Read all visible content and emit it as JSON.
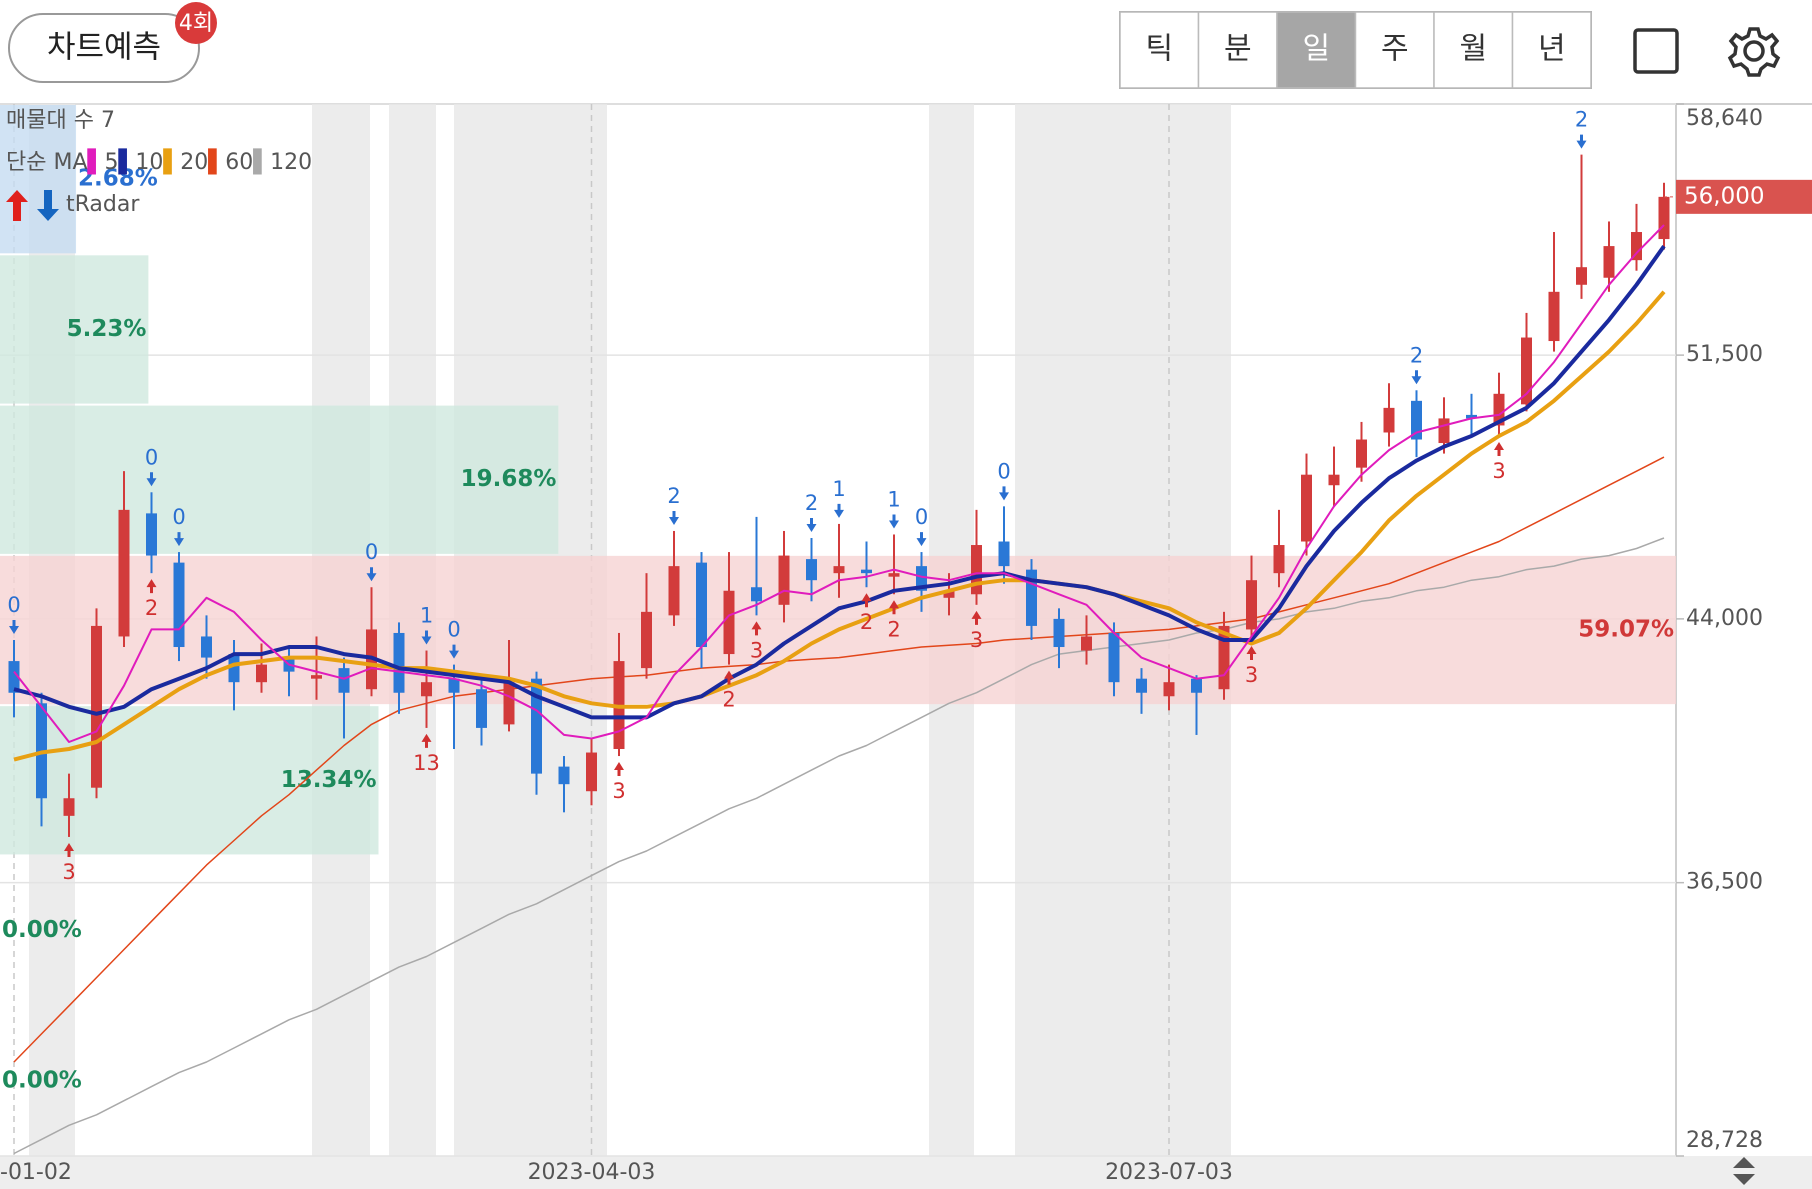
{
  "header": {
    "predict_button": "차트예측",
    "badge": "4회",
    "periods": [
      "틱",
      "분",
      "일",
      "주",
      "월",
      "년"
    ],
    "selected_index": 2
  },
  "chart_data": {
    "type": "candlestick",
    "categories": [
      "-01-02",
      null,
      null,
      null,
      null,
      null,
      null,
      null,
      null,
      null,
      null,
      null,
      null,
      null,
      null,
      null,
      null,
      null,
      null,
      null,
      null,
      "2023-04-03",
      null,
      null,
      null,
      null,
      null,
      null,
      null,
      null,
      null,
      null,
      null,
      null,
      null,
      null,
      null,
      null,
      null,
      null,
      null,
      null,
      "2023-07-03",
      null,
      null,
      null,
      null,
      null,
      null,
      null,
      null,
      null,
      null,
      null,
      null,
      null,
      null,
      null,
      null,
      null,
      null
    ],
    "candles": {
      "up_color": "#d23b3b",
      "down_color": "#2a78d6",
      "open": [
        42800,
        41600,
        38400,
        39200,
        43500,
        47000,
        45600,
        43500,
        43000,
        42200,
        42900,
        42300,
        42600,
        42000,
        43600,
        41800,
        42300,
        42000,
        41000,
        42300,
        39800,
        39100,
        40300,
        42600,
        44100,
        45600,
        43000,
        44900,
        44400,
        45700,
        45300,
        45400,
        45200,
        45500,
        44600,
        44700,
        46200,
        45400,
        44000,
        43100,
        43600,
        42300,
        41800,
        42300,
        42000,
        43700,
        45300,
        46200,
        47800,
        48300,
        49300,
        50200,
        49000,
        49800,
        49500,
        50100,
        51900,
        53500,
        53700,
        54200,
        54800
      ],
      "high": [
        43400,
        41900,
        39600,
        44300,
        48200,
        47600,
        45900,
        44100,
        43400,
        43300,
        43200,
        43500,
        42900,
        44900,
        43900,
        43100,
        42700,
        42400,
        43400,
        42500,
        40100,
        40600,
        43600,
        45300,
        46500,
        45900,
        45900,
        46900,
        46500,
        46300,
        46700,
        46200,
        46400,
        45900,
        45300,
        47100,
        47200,
        45700,
        44300,
        44100,
        43900,
        42600,
        42700,
        42400,
        44200,
        45800,
        47100,
        48700,
        48900,
        49600,
        50700,
        50500,
        50300,
        50400,
        51000,
        52700,
        55000,
        57200,
        55300,
        55800,
        56400
      ],
      "low": [
        41200,
        38100,
        37800,
        38900,
        43200,
        45300,
        42800,
        42300,
        41400,
        41900,
        41800,
        41700,
        40600,
        41800,
        41300,
        40900,
        40300,
        40400,
        40800,
        39000,
        38500,
        38700,
        40100,
        42300,
        43800,
        42600,
        42700,
        44100,
        43900,
        44500,
        44600,
        44900,
        44700,
        44200,
        44100,
        44400,
        45000,
        43400,
        42600,
        42700,
        41800,
        41300,
        41400,
        40700,
        41700,
        43400,
        44900,
        45800,
        47200,
        47900,
        48900,
        48600,
        48700,
        49200,
        49200,
        49900,
        51600,
        53100,
        53300,
        53900,
        54500
      ],
      "close": [
        41900,
        38900,
        38900,
        43800,
        47100,
        45800,
        43200,
        42900,
        42200,
        42700,
        42500,
        42400,
        41900,
        43700,
        41900,
        42200,
        41900,
        40900,
        42200,
        39600,
        39300,
        40200,
        42800,
        44200,
        45500,
        43200,
        44800,
        44500,
        45800,
        45100,
        45500,
        45300,
        45300,
        44800,
        44800,
        46100,
        45500,
        43800,
        43200,
        43500,
        42200,
        41900,
        42200,
        41900,
        43800,
        45100,
        46100,
        48100,
        48100,
        49100,
        50000,
        49100,
        49700,
        49700,
        50400,
        52000,
        53300,
        54000,
        54600,
        55000,
        56000
      ]
    },
    "ma_label": "단순 MA",
    "indicator_label": "tRadar",
    "series": [
      {
        "name": "120",
        "color": "#a9a9a9",
        "width": 1.5,
        "values": [
          28800,
          29200,
          29600,
          29900,
          30300,
          30700,
          31100,
          31400,
          31800,
          32200,
          32600,
          32900,
          33300,
          33700,
          34100,
          34400,
          34800,
          35200,
          35600,
          35900,
          36300,
          36700,
          37100,
          37400,
          37800,
          38200,
          38600,
          38900,
          39300,
          39700,
          40100,
          40400,
          40800,
          41200,
          41600,
          41900,
          42300,
          42700,
          43000,
          43100,
          43200,
          43300,
          43400,
          43600,
          43700,
          43900,
          44000,
          44200,
          44300,
          44500,
          44600,
          44800,
          44900,
          45100,
          45200,
          45400,
          45500,
          45700,
          45800,
          46000,
          46300
        ]
      },
      {
        "name": "60",
        "color": "#e2461a",
        "width": 1.5,
        "values": [
          31400,
          32200,
          33000,
          33800,
          34600,
          35400,
          36200,
          37000,
          37700,
          38400,
          39000,
          39700,
          40400,
          41000,
          41400,
          41600,
          41800,
          41900,
          42000,
          42100,
          42200,
          42300,
          42350,
          42400,
          42500,
          42600,
          42650,
          42700,
          42800,
          42850,
          42900,
          43000,
          43100,
          43200,
          43250,
          43300,
          43400,
          43450,
          43500,
          43550,
          43600,
          43650,
          43700,
          43800,
          43900,
          44000,
          44200,
          44400,
          44600,
          44800,
          45000,
          45300,
          45600,
          45900,
          46200,
          46600,
          47000,
          47400,
          47800,
          48200,
          48600
        ]
      },
      {
        "name": "20",
        "color": "#e8a012",
        "width": 4,
        "values": [
          40000,
          40200,
          40300,
          40500,
          41000,
          41500,
          42000,
          42400,
          42700,
          42800,
          42900,
          42900,
          42800,
          42700,
          42600,
          42600,
          42500,
          42400,
          42300,
          42100,
          41800,
          41600,
          41500,
          41500,
          41600,
          41800,
          42100,
          42400,
          42800,
          43300,
          43700,
          44000,
          44300,
          44600,
          44800,
          45000,
          45100,
          45100,
          45000,
          44900,
          44700,
          44500,
          44300,
          43900,
          43600,
          43300,
          43600,
          44300,
          45100,
          45900,
          46800,
          47500,
          48100,
          48700,
          49200,
          49600,
          50200,
          50900,
          51600,
          52400,
          53300
        ]
      },
      {
        "name": "10",
        "color": "#1a2a9e",
        "width": 4,
        "values": [
          42000,
          41800,
          41500,
          41300,
          41500,
          42000,
          42300,
          42600,
          43000,
          43000,
          43200,
          43200,
          43000,
          42900,
          42600,
          42500,
          42400,
          42300,
          42200,
          41800,
          41500,
          41200,
          41200,
          41200,
          41600,
          41800,
          42300,
          42700,
          43300,
          43800,
          44300,
          44500,
          44800,
          44900,
          45000,
          45200,
          45300,
          45100,
          45000,
          44900,
          44700,
          44400,
          44100,
          43700,
          43400,
          43400,
          44300,
          45500,
          46500,
          47300,
          48000,
          48500,
          48900,
          49200,
          49600,
          50000,
          50700,
          51600,
          52500,
          53500,
          54600
        ]
      },
      {
        "name": "5",
        "color": "#e01cbc",
        "width": 2,
        "values": [
          42500,
          41500,
          40500,
          40800,
          42100,
          43700,
          43700,
          44600,
          44200,
          43400,
          42700,
          42500,
          42300,
          42600,
          42500,
          42400,
          42300,
          42100,
          41800,
          41400,
          40700,
          40600,
          40800,
          41200,
          42400,
          43200,
          44100,
          44400,
          44800,
          44700,
          45100,
          45200,
          45400,
          45200,
          45100,
          45300,
          45300,
          45000,
          44700,
          44400,
          43600,
          42900,
          42600,
          42300,
          42400,
          43500,
          44600,
          46000,
          47200,
          48100,
          48800,
          49300,
          49500,
          49700,
          49800,
          50400,
          51300,
          52400,
          53500,
          54400,
          55200
        ]
      }
    ],
    "legend_order": [
      4,
      3,
      2,
      1,
      0
    ],
    "ylim": [
      28728,
      58640
    ],
    "yticks": [
      {
        "value": 28728,
        "label": "28,728"
      },
      {
        "value": 36500,
        "label": "36,500"
      },
      {
        "value": 44000,
        "label": "44,000"
      },
      {
        "value": 51500,
        "label": "51,500"
      },
      {
        "value": 58640,
        "label": "58,640"
      }
    ],
    "grid": true,
    "last_price": {
      "value": 56000,
      "label": "56,000",
      "color": "#d9534f"
    },
    "volume_profile": {
      "title": "매물대 수 7",
      "bins": [
        28728,
        33001,
        37274,
        41547,
        45820,
        50093,
        54366,
        58640
      ],
      "values": [
        0,
        0,
        13.34,
        59.07,
        19.68,
        5.23,
        2.68
      ],
      "value_labels": [
        "0.00%",
        "0.00%",
        "13.34%",
        "59.07%",
        "19.68%",
        "5.23%",
        "2.68%"
      ],
      "colors": [
        "#cfe9df",
        "#cfe9df",
        "#cfe9df",
        "#f6d3d3",
        "#cfe9df",
        "#cfe9df",
        "#c6dcf1"
      ],
      "label_colors": [
        "#1e8a5c",
        "#1e8a5c",
        "#1e8a5c",
        "#d03838",
        "#1e8a5c",
        "#1e8a5c",
        "#2a6fd0"
      ]
    },
    "signals": {
      "above_color": "#2a6fd0",
      "below_color": "#d03030",
      "items": [
        {
          "index": 0,
          "label": "0",
          "position": "above"
        },
        {
          "index": 5,
          "label": "0",
          "position": "above"
        },
        {
          "index": 6,
          "label": "0",
          "position": "above"
        },
        {
          "index": 5,
          "label": "2",
          "position": "below"
        },
        {
          "index": 2,
          "label": "3",
          "position": "below"
        },
        {
          "index": 13,
          "label": "0",
          "position": "above"
        },
        {
          "index": 15,
          "label": "1",
          "position": "above"
        },
        {
          "index": 16,
          "label": "0",
          "position": "above"
        },
        {
          "index": 15,
          "label": "13",
          "position": "below"
        },
        {
          "index": 22,
          "label": "3",
          "position": "below"
        },
        {
          "index": 24,
          "label": "2",
          "position": "above"
        },
        {
          "index": 26,
          "label": "2",
          "position": "below"
        },
        {
          "index": 27,
          "label": "3",
          "position": "below"
        },
        {
          "index": 29,
          "label": "2",
          "position": "above"
        },
        {
          "index": 30,
          "label": "1",
          "position": "above"
        },
        {
          "index": 31,
          "label": "2",
          "position": "below"
        },
        {
          "index": 32,
          "label": "1",
          "position": "above"
        },
        {
          "index": 33,
          "label": "0",
          "position": "above"
        },
        {
          "index": 32,
          "label": "2",
          "position": "below"
        },
        {
          "index": 35,
          "label": "3",
          "position": "below"
        },
        {
          "index": 36,
          "label": "0",
          "position": "above"
        },
        {
          "index": 45,
          "label": "3",
          "position": "below"
        },
        {
          "index": 51,
          "label": "2",
          "position": "above"
        },
        {
          "index": 54,
          "label": "3",
          "position": "below"
        },
        {
          "index": 57,
          "label": "2",
          "position": "above"
        }
      ]
    }
  }
}
